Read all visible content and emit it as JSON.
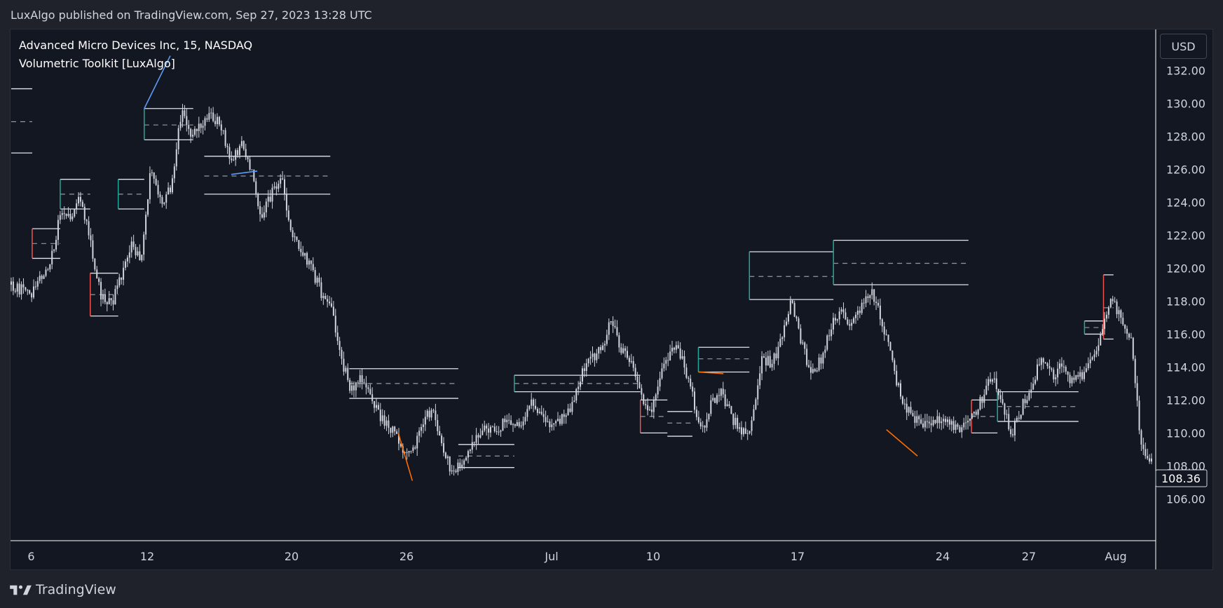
{
  "header": {
    "published": "LuxAlgo published on TradingView.com, Sep 27, 2023 13:28 UTC"
  },
  "legend": {
    "symbol": "Advanced Micro Devices Inc, 15, NASDAQ",
    "indicator": "Volumetric Toolkit [LuxAlgo]"
  },
  "currency": "USD",
  "footer": {
    "brand": "TradingView"
  },
  "colors": {
    "background": "#131722",
    "frame": "#1f222a",
    "candle": "#d1d4dc",
    "up": "#26a69a",
    "down": "#ef5350",
    "trend_up": "#5b9cf6",
    "trend_down": "#ff6d00",
    "level": "#e0e3eb",
    "axis_text": "#d1d4dc"
  },
  "chart_data": {
    "type": "candlestick",
    "symbol": "AMD",
    "interval": "15",
    "exchange": "NASDAQ",
    "last_price": 108.36,
    "y_ticks": [
      106.0,
      108.0,
      110.0,
      112.0,
      114.0,
      116.0,
      118.0,
      120.0,
      122.0,
      124.0,
      126.0,
      128.0,
      130.0,
      132.0
    ],
    "ylim": [
      103.5,
      134.5
    ],
    "x_ticks": [
      "6",
      "12",
      "20",
      "26",
      "Jul",
      "10",
      "17",
      "24",
      "27",
      "Aug"
    ],
    "price_path": [
      [
        0,
        119.0
      ],
      [
        2,
        118.4
      ],
      [
        3,
        119.5
      ],
      [
        4,
        120.6
      ],
      [
        5,
        123.5
      ],
      [
        6,
        123.2
      ],
      [
        7,
        124.3
      ],
      [
        8,
        121.3
      ],
      [
        9,
        118.3
      ],
      [
        10,
        117.8
      ],
      [
        11,
        119.5
      ],
      [
        12,
        121.3
      ],
      [
        13,
        120.5
      ],
      [
        14,
        126.3
      ],
      [
        15,
        124.0
      ],
      [
        16,
        124.8
      ],
      [
        17,
        129.5
      ],
      [
        18,
        128.0
      ],
      [
        19,
        128.6
      ],
      [
        20,
        129.4
      ],
      [
        21,
        128.5
      ],
      [
        22,
        126.5
      ],
      [
        23,
        127.5
      ],
      [
        24,
        125.8
      ],
      [
        25,
        123.3
      ],
      [
        26,
        124.5
      ],
      [
        27,
        125.7
      ],
      [
        28,
        122.0
      ],
      [
        29,
        121.0
      ],
      [
        30,
        120.0
      ],
      [
        31,
        118.5
      ],
      [
        32,
        117.5
      ],
      [
        33,
        114.5
      ],
      [
        34,
        112.5
      ],
      [
        35,
        113.5
      ],
      [
        36,
        112.0
      ],
      [
        37,
        110.8
      ],
      [
        38,
        110.3
      ],
      [
        39,
        109.2
      ],
      [
        40,
        108.8
      ],
      [
        41,
        110.3
      ],
      [
        42,
        111.5
      ],
      [
        43,
        109.2
      ],
      [
        44,
        107.7
      ],
      [
        45,
        108.0
      ],
      [
        46,
        109.2
      ],
      [
        47,
        110.3
      ],
      [
        48,
        110.0
      ],
      [
        49,
        110.5
      ],
      [
        50,
        110.8
      ],
      [
        51,
        110.2
      ],
      [
        52,
        111.8
      ],
      [
        53,
        111.2
      ],
      [
        54,
        110.3
      ],
      [
        55,
        110.8
      ],
      [
        56,
        111.5
      ],
      [
        57,
        113.5
      ],
      [
        58,
        114.5
      ],
      [
        59,
        115.0
      ],
      [
        60,
        117.0
      ],
      [
        61,
        115.0
      ],
      [
        62,
        114.5
      ],
      [
        63,
        112.0
      ],
      [
        64,
        111.5
      ],
      [
        65,
        113.5
      ],
      [
        66,
        115.2
      ],
      [
        67,
        114.8
      ],
      [
        68,
        112.5
      ],
      [
        69,
        110.0
      ],
      [
        70,
        111.8
      ],
      [
        71,
        112.5
      ],
      [
        72,
        111.0
      ],
      [
        73,
        110.0
      ],
      [
        74,
        110.5
      ],
      [
        75,
        114.5
      ],
      [
        76,
        114.3
      ],
      [
        77,
        115.5
      ],
      [
        78,
        118.0
      ],
      [
        79,
        115.5
      ],
      [
        80,
        113.5
      ],
      [
        81,
        114.5
      ],
      [
        82,
        116.5
      ],
      [
        83,
        117.3
      ],
      [
        84,
        116.5
      ],
      [
        85,
        117.8
      ],
      [
        86,
        118.6
      ],
      [
        87,
        117.0
      ],
      [
        88,
        114.5
      ],
      [
        89,
        112.0
      ],
      [
        90,
        111.0
      ],
      [
        91,
        110.5
      ],
      [
        92,
        110.5
      ],
      [
        93,
        111.0
      ],
      [
        94,
        110.5
      ],
      [
        95,
        110.2
      ],
      [
        96,
        110.8
      ],
      [
        97,
        112.0
      ],
      [
        98,
        113.5
      ],
      [
        99,
        112.0
      ],
      [
        100,
        110.0
      ],
      [
        101,
        111.5
      ],
      [
        102,
        113.0
      ],
      [
        103,
        114.5
      ],
      [
        104,
        113.5
      ],
      [
        105,
        114.0
      ],
      [
        106,
        113.0
      ],
      [
        107,
        113.5
      ],
      [
        108,
        114.5
      ],
      [
        109,
        116.0
      ],
      [
        110,
        118.0
      ],
      [
        111,
        117.0
      ],
      [
        112,
        115.5
      ],
      [
        113,
        109.0
      ],
      [
        114,
        108.2
      ]
    ],
    "levels": [
      {
        "from": 0,
        "to": 2.1,
        "upper": 130.9,
        "mid": 128.9,
        "lower": 127.0,
        "edge": "none"
      },
      {
        "from": 2.1,
        "to": 4.9,
        "upper": 122.4,
        "mid": 121.5,
        "lower": 120.6,
        "edge": "down"
      },
      {
        "from": 4.9,
        "to": 7.9,
        "upper": 125.4,
        "mid": 124.5,
        "lower": 123.6,
        "edge": "up"
      },
      {
        "from": 7.9,
        "to": 10.7,
        "upper": 119.7,
        "mid": 118.4,
        "lower": 117.1,
        "edge": "down"
      },
      {
        "from": 10.7,
        "to": 13.3,
        "upper": 125.4,
        "mid": 124.5,
        "lower": 123.6,
        "edge": "up"
      },
      {
        "from": 13.3,
        "to": 18.2,
        "upper": 129.7,
        "mid": 128.7,
        "lower": 127.8,
        "edge": "up"
      },
      {
        "from": 19.3,
        "to": 31.9,
        "upper": 126.8,
        "mid": 125.6,
        "lower": 124.5,
        "edge": "none"
      },
      {
        "from": 33.8,
        "to": 44.7,
        "upper": 113.9,
        "mid": 113.0,
        "lower": 112.1,
        "edge": "none"
      },
      {
        "from": 44.7,
        "to": 50.3,
        "upper": 109.3,
        "mid": 108.6,
        "lower": 107.9,
        "edge": "none"
      },
      {
        "from": 50.3,
        "to": 62.9,
        "upper": 113.5,
        "mid": 113.0,
        "lower": 112.5,
        "edge": "up"
      },
      {
        "from": 62.9,
        "to": 65.6,
        "upper": 112.0,
        "mid": 111.0,
        "lower": 110.0,
        "edge": "down"
      },
      {
        "from": 65.6,
        "to": 68.1,
        "upper": 111.3,
        "mid": 110.6,
        "lower": 109.8,
        "edge": "none"
      },
      {
        "from": 68.7,
        "to": 73.8,
        "upper": 115.2,
        "mid": 114.5,
        "lower": 113.7,
        "edge": "up"
      },
      {
        "from": 73.8,
        "to": 82.2,
        "upper": 121.0,
        "mid": 119.5,
        "lower": 118.1,
        "edge": "up"
      },
      {
        "from": 82.2,
        "to": 95.7,
        "upper": 121.7,
        "mid": 120.3,
        "lower": 119.0,
        "edge": "up"
      },
      {
        "from": 96.0,
        "to": 98.6,
        "upper": 112.0,
        "mid": 111.0,
        "lower": 110.0,
        "edge": "down"
      },
      {
        "from": 98.6,
        "to": 106.7,
        "upper": 112.5,
        "mid": 111.6,
        "lower": 110.7,
        "edge": "up"
      },
      {
        "from": 107.3,
        "to": 109.2,
        "upper": 116.8,
        "mid": 116.4,
        "lower": 116.0,
        "edge": "up"
      },
      {
        "from": 109.2,
        "to": 110.2,
        "upper": 119.6,
        "mid": 117.6,
        "lower": 115.7,
        "edge": "down"
      }
    ],
    "trend_lines": [
      {
        "x1": 13.3,
        "y1": 129.7,
        "x2": 15.9,
        "y2": 132.9,
        "dir": "up"
      },
      {
        "x1": 22.0,
        "y1": 125.7,
        "x2": 24.6,
        "y2": 125.9,
        "dir": "up"
      },
      {
        "x1": 38.7,
        "y1": 110.0,
        "x2": 40.1,
        "y2": 107.1,
        "dir": "down"
      },
      {
        "x1": 68.7,
        "y1": 113.7,
        "x2": 71.2,
        "y2": 113.6,
        "dir": "down"
      },
      {
        "x1": 87.5,
        "y1": 110.2,
        "x2": 90.6,
        "y2": 108.6,
        "dir": "down"
      }
    ]
  }
}
